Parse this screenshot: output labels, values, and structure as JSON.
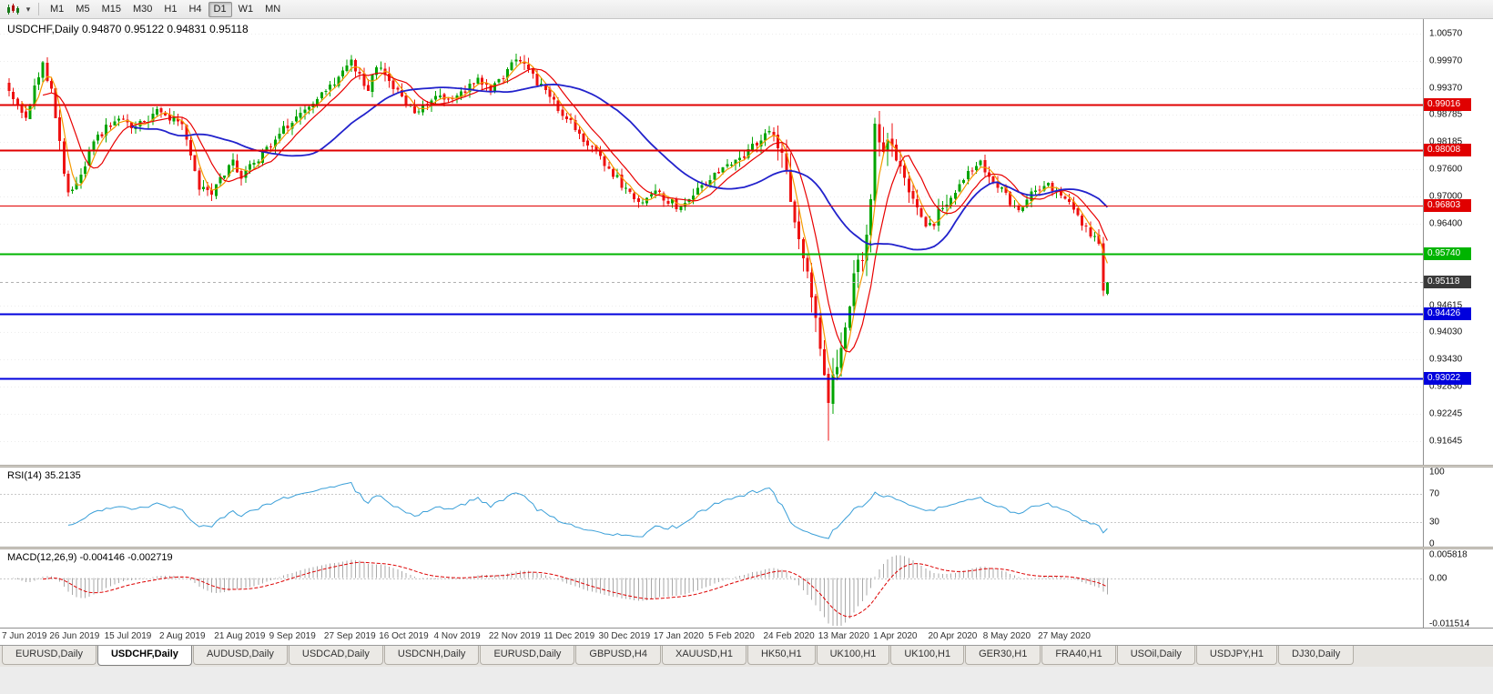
{
  "toolbar": {
    "timeframes": [
      "M1",
      "M5",
      "M15",
      "M30",
      "H1",
      "H4",
      "D1",
      "W1",
      "MN"
    ],
    "active_timeframe": "D1"
  },
  "main_chart": {
    "title": "USDCHF,Daily 0.94870 0.95122 0.94831 0.95118",
    "symbol": "USDCHF",
    "period": "Daily",
    "open": "0.94870",
    "high": "0.95122",
    "low": "0.94831",
    "close": "0.95118",
    "current_price_label": "0.95118",
    "axis_ticks": [
      "1.00570",
      "0.99970",
      "0.99370",
      "0.98785",
      "0.98185",
      "0.97600",
      "0.97000",
      "0.96400",
      "0.94615",
      "0.94030",
      "0.93430",
      "0.92830",
      "0.92245",
      "0.91645"
    ],
    "hlines": [
      {
        "price": 0.99016,
        "label": "0.99016",
        "color": "#e00000",
        "width": 2
      },
      {
        "price": 0.98008,
        "label": "0.98008",
        "color": "#e00000",
        "width": 2
      },
      {
        "price": 0.96803,
        "label": "0.96803",
        "color": "#e00000",
        "width": 1
      },
      {
        "price": 0.9574,
        "label": "0.95740",
        "color": "#00b400",
        "width": 2
      },
      {
        "price": 0.94426,
        "label": "0.94426",
        "color": "#0000dd",
        "width": 2
      },
      {
        "price": 0.93022,
        "label": "0.93022",
        "color": "#0000dd",
        "width": 2
      }
    ]
  },
  "rsi_panel": {
    "name": "RSI(14)",
    "value": "35.2135",
    "axis_ticks": [
      "100",
      "70",
      "30",
      "0"
    ],
    "guide_levels": [
      70,
      30
    ]
  },
  "macd_panel": {
    "name": "MACD(12,26,9)",
    "value": "-0.004146 -0.002719",
    "axis_ticks": [
      "0.005818",
      "0.00",
      "-0.011514"
    ]
  },
  "date_axis": [
    "7 Jun 2019",
    "26 Jun 2019",
    "15 Jul 2019",
    "2 Aug 2019",
    "21 Aug 2019",
    "9 Sep 2019",
    "27 Sep 2019",
    "16 Oct 2019",
    "4 Nov 2019",
    "22 Nov 2019",
    "11 Dec 2019",
    "30 Dec 2019",
    "17 Jan 2020",
    "5 Feb 2020",
    "24 Feb 2020",
    "13 Mar 2020",
    "1 Apr 2020",
    "20 Apr 2020",
    "8 May 2020",
    "27 May 2020"
  ],
  "tabs": [
    "EURUSD,Daily",
    "USDCHF,Daily",
    "AUDUSD,Daily",
    "USDCAD,Daily",
    "USDCNH,Daily",
    "EURUSD,Daily",
    "GBPUSD,H4",
    "XAUUSD,H1",
    "HK50,H1",
    "UK100,H1",
    "UK100,H1",
    "GER30,H1",
    "FRA40,H1",
    "USOil,Daily",
    "USDJPY,H1",
    "DJ30,Daily"
  ],
  "active_tab": 1,
  "colors": {
    "bull": "#00a400",
    "bear": "#ee1111",
    "ma_fast": "#f59a00",
    "ma_mid": "#e80000",
    "ma_slow": "#2222cc",
    "rsi_line": "#3a9fd8",
    "macd_hist": "#a8a8a8",
    "macd_signal": "#dd0000",
    "grid": "#ececec",
    "current_price_bg": "#3a3a3a"
  },
  "chart_data": {
    "type": "candlestick",
    "symbol": "USDCHF",
    "timeframe": "Daily",
    "days": 260,
    "price_range": {
      "top": 1.0078,
      "bottom": 0.9118
    },
    "last_candle": {
      "open": 0.9487,
      "high": 0.95122,
      "low": 0.94831,
      "close": 0.95118
    },
    "crash_low": {
      "day": 194,
      "low": 0.91645
    },
    "price_anchors": [
      [
        0,
        0.9935
      ],
      [
        2,
        0.9898
      ],
      [
        4,
        0.9868
      ],
      [
        6,
        0.9942
      ],
      [
        8,
        0.999
      ],
      [
        10,
        0.9932
      ],
      [
        12,
        0.9812
      ],
      [
        14,
        0.9706
      ],
      [
        16,
        0.9728
      ],
      [
        18,
        0.9768
      ],
      [
        20,
        0.9816
      ],
      [
        23,
        0.9852
      ],
      [
        26,
        0.9876
      ],
      [
        29,
        0.9846
      ],
      [
        32,
        0.9862
      ],
      [
        35,
        0.9888
      ],
      [
        38,
        0.9872
      ],
      [
        41,
        0.9856
      ],
      [
        43,
        0.9786
      ],
      [
        45,
        0.9722
      ],
      [
        48,
        0.9708
      ],
      [
        51,
        0.9748
      ],
      [
        53,
        0.9778
      ],
      [
        55,
        0.9742
      ],
      [
        58,
        0.9772
      ],
      [
        61,
        0.9802
      ],
      [
        64,
        0.9838
      ],
      [
        67,
        0.9862
      ],
      [
        70,
        0.9886
      ],
      [
        73,
        0.9912
      ],
      [
        76,
        0.994
      ],
      [
        79,
        0.9972
      ],
      [
        81,
        0.9998
      ],
      [
        83,
        0.9962
      ],
      [
        85,
        0.9938
      ],
      [
        87,
        0.9986
      ],
      [
        90,
        0.9952
      ],
      [
        93,
        0.9912
      ],
      [
        96,
        0.9882
      ],
      [
        99,
        0.9902
      ],
      [
        102,
        0.9926
      ],
      [
        105,
        0.9906
      ],
      [
        108,
        0.9932
      ],
      [
        111,
        0.9952
      ],
      [
        114,
        0.9936
      ],
      [
        117,
        0.9962
      ],
      [
        119,
        0.9992
      ],
      [
        121,
        1.0004
      ],
      [
        123,
        0.9972
      ],
      [
        126,
        0.9938
      ],
      [
        129,
        0.9906
      ],
      [
        132,
        0.9872
      ],
      [
        135,
        0.9838
      ],
      [
        138,
        0.9802
      ],
      [
        141,
        0.9772
      ],
      [
        144,
        0.9738
      ],
      [
        147,
        0.9702
      ],
      [
        150,
        0.9682
      ],
      [
        153,
        0.9712
      ],
      [
        156,
        0.9692
      ],
      [
        159,
        0.9672
      ],
      [
        162,
        0.9706
      ],
      [
        165,
        0.9732
      ],
      [
        168,
        0.9756
      ],
      [
        171,
        0.9772
      ],
      [
        174,
        0.9792
      ],
      [
        177,
        0.9818
      ],
      [
        180,
        0.9842
      ],
      [
        182,
        0.9812
      ],
      [
        184,
        0.9742
      ],
      [
        186,
        0.9652
      ],
      [
        188,
        0.9562
      ],
      [
        190,
        0.9478
      ],
      [
        192,
        0.9372
      ],
      [
        194,
        0.9268
      ],
      [
        196,
        0.9342
      ],
      [
        198,
        0.9428
      ],
      [
        200,
        0.9522
      ],
      [
        202,
        0.9565
      ],
      [
        204,
        0.9692
      ],
      [
        205,
        0.9858
      ],
      [
        207,
        0.9788
      ],
      [
        209,
        0.982
      ],
      [
        211,
        0.9752
      ],
      [
        213,
        0.9702
      ],
      [
        215,
        0.9662
      ],
      [
        218,
        0.9628
      ],
      [
        221,
        0.9682
      ],
      [
        224,
        0.9708
      ],
      [
        227,
        0.9748
      ],
      [
        230,
        0.9772
      ],
      [
        233,
        0.9732
      ],
      [
        236,
        0.9702
      ],
      [
        239,
        0.9662
      ],
      [
        242,
        0.9706
      ],
      [
        245,
        0.9726
      ],
      [
        248,
        0.9712
      ],
      [
        251,
        0.9692
      ],
      [
        254,
        0.9642
      ],
      [
        256,
        0.9618
      ],
      [
        258,
        0.9598
      ],
      [
        259,
        0.9492
      ],
      [
        260,
        0.9512
      ]
    ],
    "volatility_zones": [
      {
        "from": 11,
        "to": 15,
        "amp": 1.6
      },
      {
        "from": 182,
        "to": 209,
        "amp": 2.6
      },
      {
        "from": 210,
        "to": 222,
        "amp": 1.6
      }
    ],
    "ma_periods": {
      "fast": 4,
      "mid": 9,
      "slow": 30
    },
    "rsi": {
      "period": 14,
      "current": 35.2135
    },
    "macd": {
      "fast": 12,
      "slow": 26,
      "signal": 9,
      "current": [
        -0.004146,
        -0.002719
      ],
      "range": {
        "max": 0.005818,
        "min": -0.011514
      }
    }
  }
}
